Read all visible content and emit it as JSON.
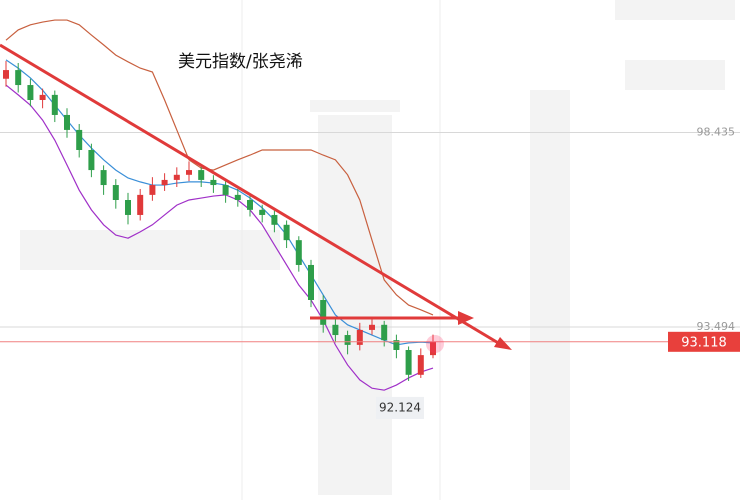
{
  "chart_data": {
    "type": "candlestick",
    "title": "美元指数/张尧浠",
    "ylim": [
      89.1,
      101.8
    ],
    "yticks": [
      98.435,
      93.494
    ],
    "grid": true,
    "up_color": "#e0393a",
    "down_color": "#2e9e4a",
    "open": [
      99.8,
      100.02,
      99.64,
      99.26,
      99.39,
      98.88,
      98.5,
      97.99,
      97.48,
      97.1,
      96.72,
      96.34,
      96.85,
      97.1,
      97.23,
      97.36,
      97.48,
      97.23,
      97.1,
      96.85,
      96.72,
      96.47,
      96.34,
      96.09,
      95.7,
      95.07,
      94.18,
      93.55,
      93.29,
      93.04,
      93.42,
      93.55,
      93.16,
      92.91,
      92.28,
      92.78
    ],
    "high": [
      100.25,
      100.2,
      99.8,
      99.55,
      99.5,
      99.05,
      98.65,
      98.15,
      97.6,
      97.25,
      96.9,
      97.0,
      97.3,
      97.4,
      97.55,
      97.7,
      97.6,
      97.35,
      97.2,
      97.0,
      96.85,
      96.6,
      96.45,
      96.2,
      95.8,
      95.2,
      94.3,
      93.7,
      93.4,
      93.6,
      93.75,
      93.65,
      93.3,
      93.0,
      92.95,
      93.3
    ],
    "low": [
      99.6,
      99.45,
      99.1,
      99.05,
      98.7,
      98.3,
      97.8,
      97.3,
      96.85,
      96.5,
      96.1,
      96.2,
      96.7,
      96.95,
      97.05,
      97.2,
      97.05,
      96.9,
      96.65,
      96.55,
      96.3,
      96.15,
      95.9,
      95.5,
      94.9,
      94.0,
      93.35,
      93.1,
      92.8,
      92.9,
      93.3,
      93.0,
      92.7,
      92.124,
      92.2,
      92.7
    ],
    "close": [
      100.02,
      99.64,
      99.26,
      99.39,
      98.88,
      98.5,
      97.99,
      97.48,
      97.1,
      96.72,
      96.34,
      96.85,
      97.1,
      97.23,
      97.36,
      97.48,
      97.23,
      97.1,
      96.85,
      96.72,
      96.47,
      96.34,
      96.09,
      95.7,
      95.07,
      94.18,
      93.55,
      93.29,
      93.04,
      93.42,
      93.55,
      93.16,
      92.91,
      92.28,
      92.78,
      93.118
    ],
    "lines": [
      {
        "color": "#c8603f",
        "values": [
          100.78,
          101.04,
          101.17,
          101.24,
          101.29,
          101.29,
          101.17,
          100.91,
          100.66,
          100.4,
          100.23,
          100.07,
          99.97,
          99.26,
          98.5,
          97.74,
          97.53,
          97.48,
          97.61,
          97.74,
          97.86,
          97.99,
          97.99,
          97.99,
          97.99,
          97.99,
          97.86,
          97.74,
          97.36,
          96.72,
          95.7,
          94.69,
          94.31,
          94.05,
          93.93,
          93.8
        ]
      },
      {
        "color": "#3a8fd8",
        "values": [
          100.28,
          100.07,
          99.82,
          99.51,
          99.13,
          98.75,
          98.37,
          98.04,
          97.74,
          97.48,
          97.28,
          97.18,
          97.1,
          97.1,
          97.15,
          97.18,
          97.18,
          97.15,
          97.1,
          96.97,
          96.77,
          96.52,
          96.21,
          95.83,
          95.32,
          94.82,
          94.31,
          93.8,
          93.55,
          93.42,
          93.29,
          93.16,
          93.04,
          93.09,
          93.11,
          93.09
        ]
      },
      {
        "color": "#a030c8",
        "values": [
          99.64,
          99.39,
          99.13,
          98.75,
          98.24,
          97.61,
          96.97,
          96.47,
          96.09,
          95.83,
          95.75,
          95.91,
          96.09,
          96.34,
          96.59,
          96.72,
          96.77,
          96.82,
          96.85,
          96.72,
          96.47,
          96.09,
          95.58,
          95.07,
          94.56,
          94.18,
          93.67,
          93.04,
          92.53,
          92.15,
          91.94,
          91.89,
          92.02,
          92.2,
          92.35,
          92.45
        ]
      }
    ]
  }
}
